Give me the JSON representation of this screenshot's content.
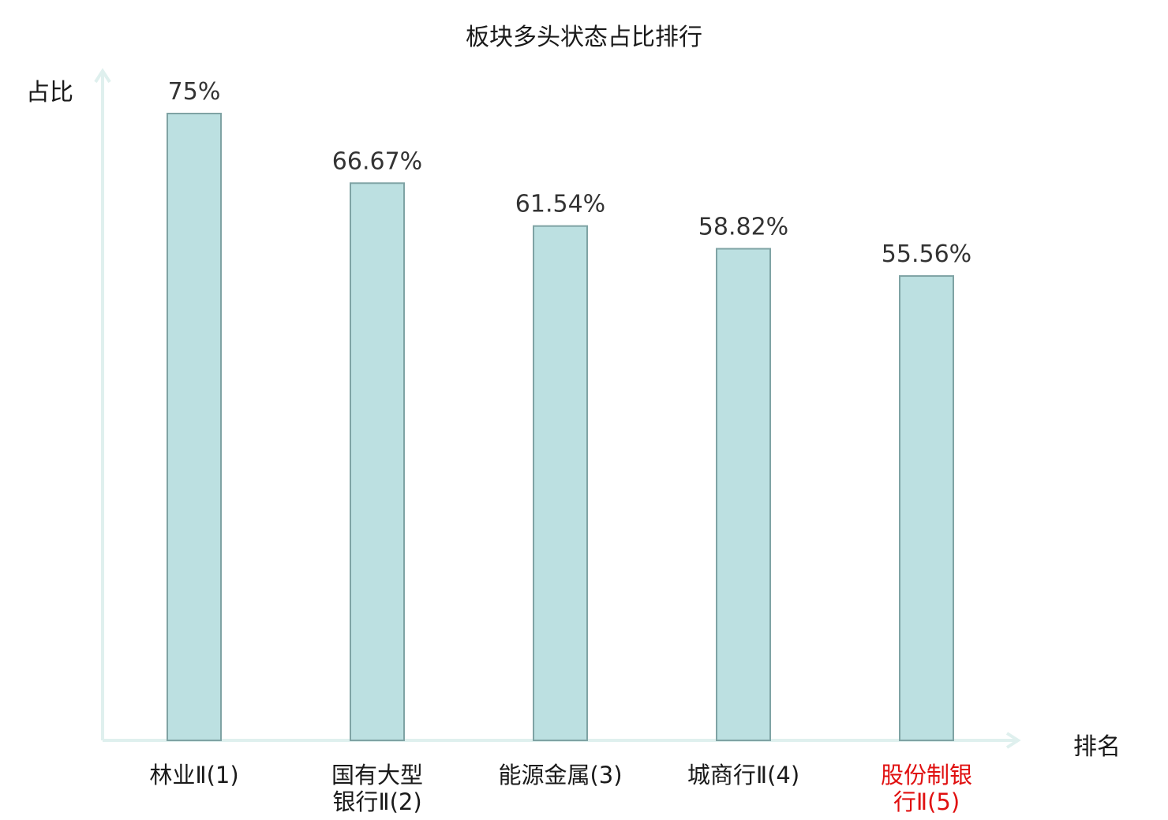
{
  "chart_data": {
    "type": "bar",
    "title": "板块多头状态占比排行",
    "ylabel": "占比",
    "xlabel": "排名",
    "categories": [
      "林业Ⅱ(1)",
      "国有大型\n银行Ⅱ(2)",
      "能源金属(3)",
      "城商行Ⅱ(4)",
      "股份制银\n行Ⅱ(5)"
    ],
    "values": [
      75,
      66.67,
      61.54,
      58.82,
      55.56
    ],
    "value_labels": [
      "75%",
      "66.67%",
      "61.54%",
      "58.82%",
      "55.56%"
    ],
    "highlighted_category_index": 4,
    "ylim": [
      0,
      100
    ],
    "grid": false,
    "legend": "none",
    "colors": {
      "bar_fill": "#bce0e1",
      "bar_stroke": "#7fa3a4",
      "axis": "#dff0ee",
      "value_text": "#333333",
      "highlight_text": "#e01010"
    }
  }
}
